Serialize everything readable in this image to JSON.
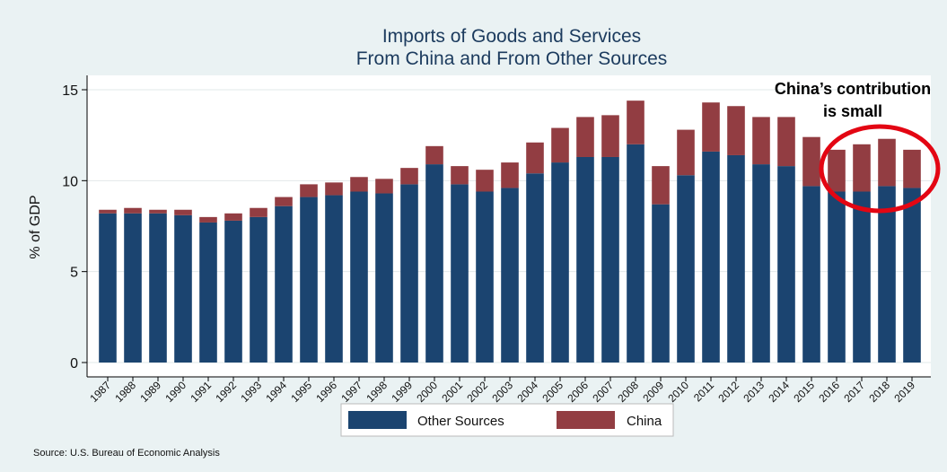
{
  "chart_data": {
    "type": "bar",
    "stacked": true,
    "title": [
      "Imports of Goods and Services",
      "From China and From Other Sources"
    ],
    "ylabel": "% of GDP",
    "xlabel": "",
    "ylim": [
      0,
      15
    ],
    "yticks": [
      0,
      5,
      10,
      15
    ],
    "grid": true,
    "legend_position": "bottom",
    "categories": [
      "1987",
      "1988",
      "1989",
      "1990",
      "1991",
      "1992",
      "1993",
      "1994",
      "1995",
      "1996",
      "1997",
      "1998",
      "1999",
      "2000",
      "2001",
      "2002",
      "2003",
      "2004",
      "2005",
      "2006",
      "2007",
      "2008",
      "2009",
      "2010",
      "2011",
      "2012",
      "2013",
      "2014",
      "2015",
      "2016",
      "2017",
      "2018",
      "2019"
    ],
    "series": [
      {
        "name": "Other Sources",
        "color": "#1b4470",
        "values": [
          8.2,
          8.2,
          8.2,
          8.1,
          7.7,
          7.8,
          8.0,
          8.6,
          9.1,
          9.2,
          9.4,
          9.3,
          9.8,
          10.9,
          9.8,
          9.4,
          9.6,
          10.4,
          11.0,
          11.3,
          11.3,
          12.0,
          8.7,
          10.3,
          11.6,
          11.4,
          10.9,
          10.8,
          9.7,
          9.4,
          9.4,
          9.7,
          9.6
        ]
      },
      {
        "name": "China",
        "color": "#923d42",
        "values": [
          0.2,
          0.3,
          0.2,
          0.3,
          0.3,
          0.4,
          0.5,
          0.5,
          0.7,
          0.7,
          0.8,
          0.8,
          0.9,
          1.0,
          1.0,
          1.2,
          1.4,
          1.7,
          1.9,
          2.2,
          2.3,
          2.4,
          2.1,
          2.5,
          2.7,
          2.7,
          2.6,
          2.7,
          2.7,
          2.3,
          2.6,
          2.6,
          2.1
        ]
      }
    ],
    "annotation": {
      "text_line1": "China’s contribution",
      "text_line2": "is small",
      "highlight_color": "#e30613"
    },
    "source": "Source: U.S. Bureau of Economic Analysis"
  }
}
